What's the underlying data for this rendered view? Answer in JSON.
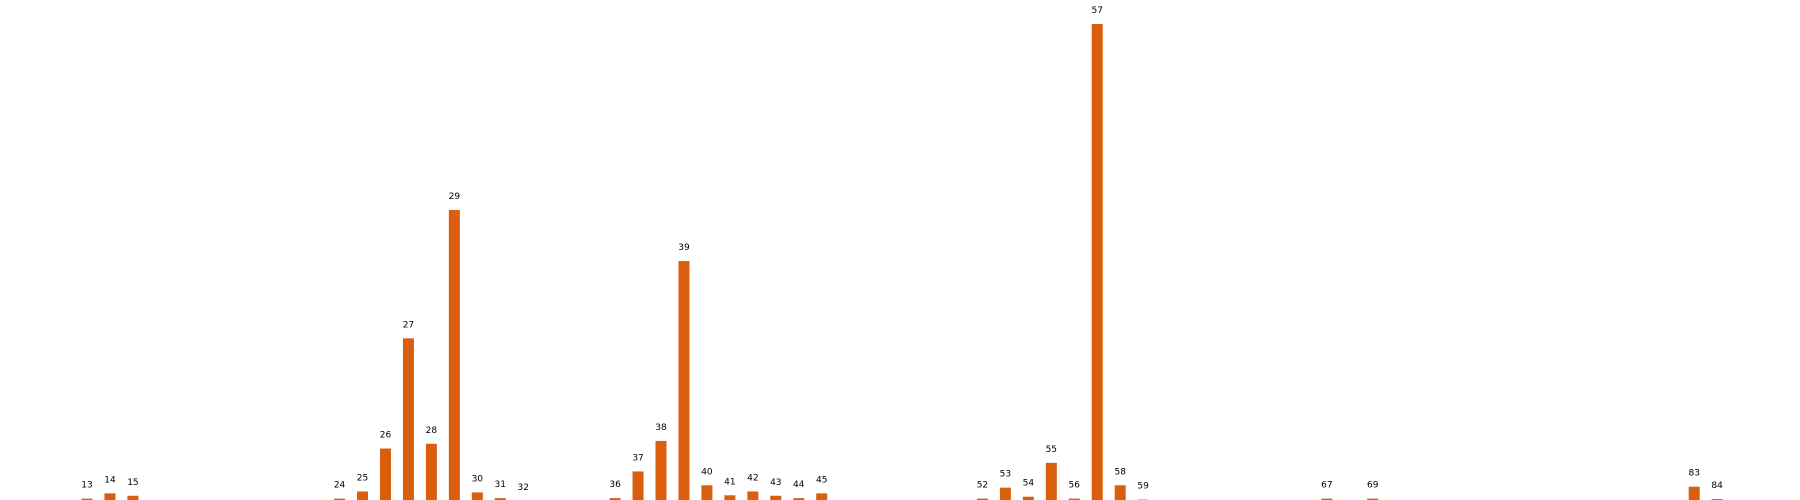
{
  "chart_data": {
    "type": "bar",
    "categories": [
      "13",
      "14",
      "15",
      "24",
      "25",
      "26",
      "27",
      "28",
      "29",
      "30",
      "31",
      "32",
      "36",
      "37",
      "38",
      "39",
      "40",
      "41",
      "42",
      "43",
      "44",
      "45",
      "52",
      "53",
      "54",
      "55",
      "56",
      "57",
      "58",
      "59",
      "67",
      "69",
      "83",
      "84"
    ],
    "x": [
      13,
      14,
      15,
      24,
      25,
      26,
      27,
      28,
      29,
      30,
      31,
      32,
      36,
      37,
      38,
      39,
      40,
      41,
      42,
      43,
      44,
      45,
      52,
      53,
      54,
      55,
      56,
      57,
      58,
      59,
      67,
      69,
      83,
      84
    ],
    "values": [
      0.5,
      1.6,
      1.1,
      0.5,
      2.0,
      11.0,
      34.1,
      12.0,
      61.0,
      1.8,
      0.6,
      0.0,
      0.6,
      6.2,
      12.6,
      50.3,
      3.3,
      1.2,
      2.0,
      1.1,
      0.6,
      1.6,
      0.5,
      2.8,
      0.9,
      8.0,
      0.5,
      100.0,
      3.3,
      0.3,
      0.5,
      0.5,
      3.0,
      0.4
    ],
    "labels": [
      "13",
      "14",
      "15",
      "24",
      "25",
      "26",
      "27",
      "28",
      "29",
      "30",
      "31",
      "32",
      "36",
      "37",
      "38",
      "39",
      "40",
      "41",
      "42",
      "43",
      "44",
      "45",
      "52",
      "53",
      "54",
      "55",
      "56",
      "57",
      "58",
      "59",
      "67",
      "69",
      "83",
      "84"
    ],
    "ylim": [
      0,
      100
    ],
    "xlim": [
      10,
      88
    ],
    "grid": false,
    "axes_visible": false,
    "title": "",
    "xlabel": "",
    "ylabel": ""
  },
  "colors": {
    "bar": "#d95f0e",
    "label": "#000000",
    "background": "#ffffff"
  }
}
